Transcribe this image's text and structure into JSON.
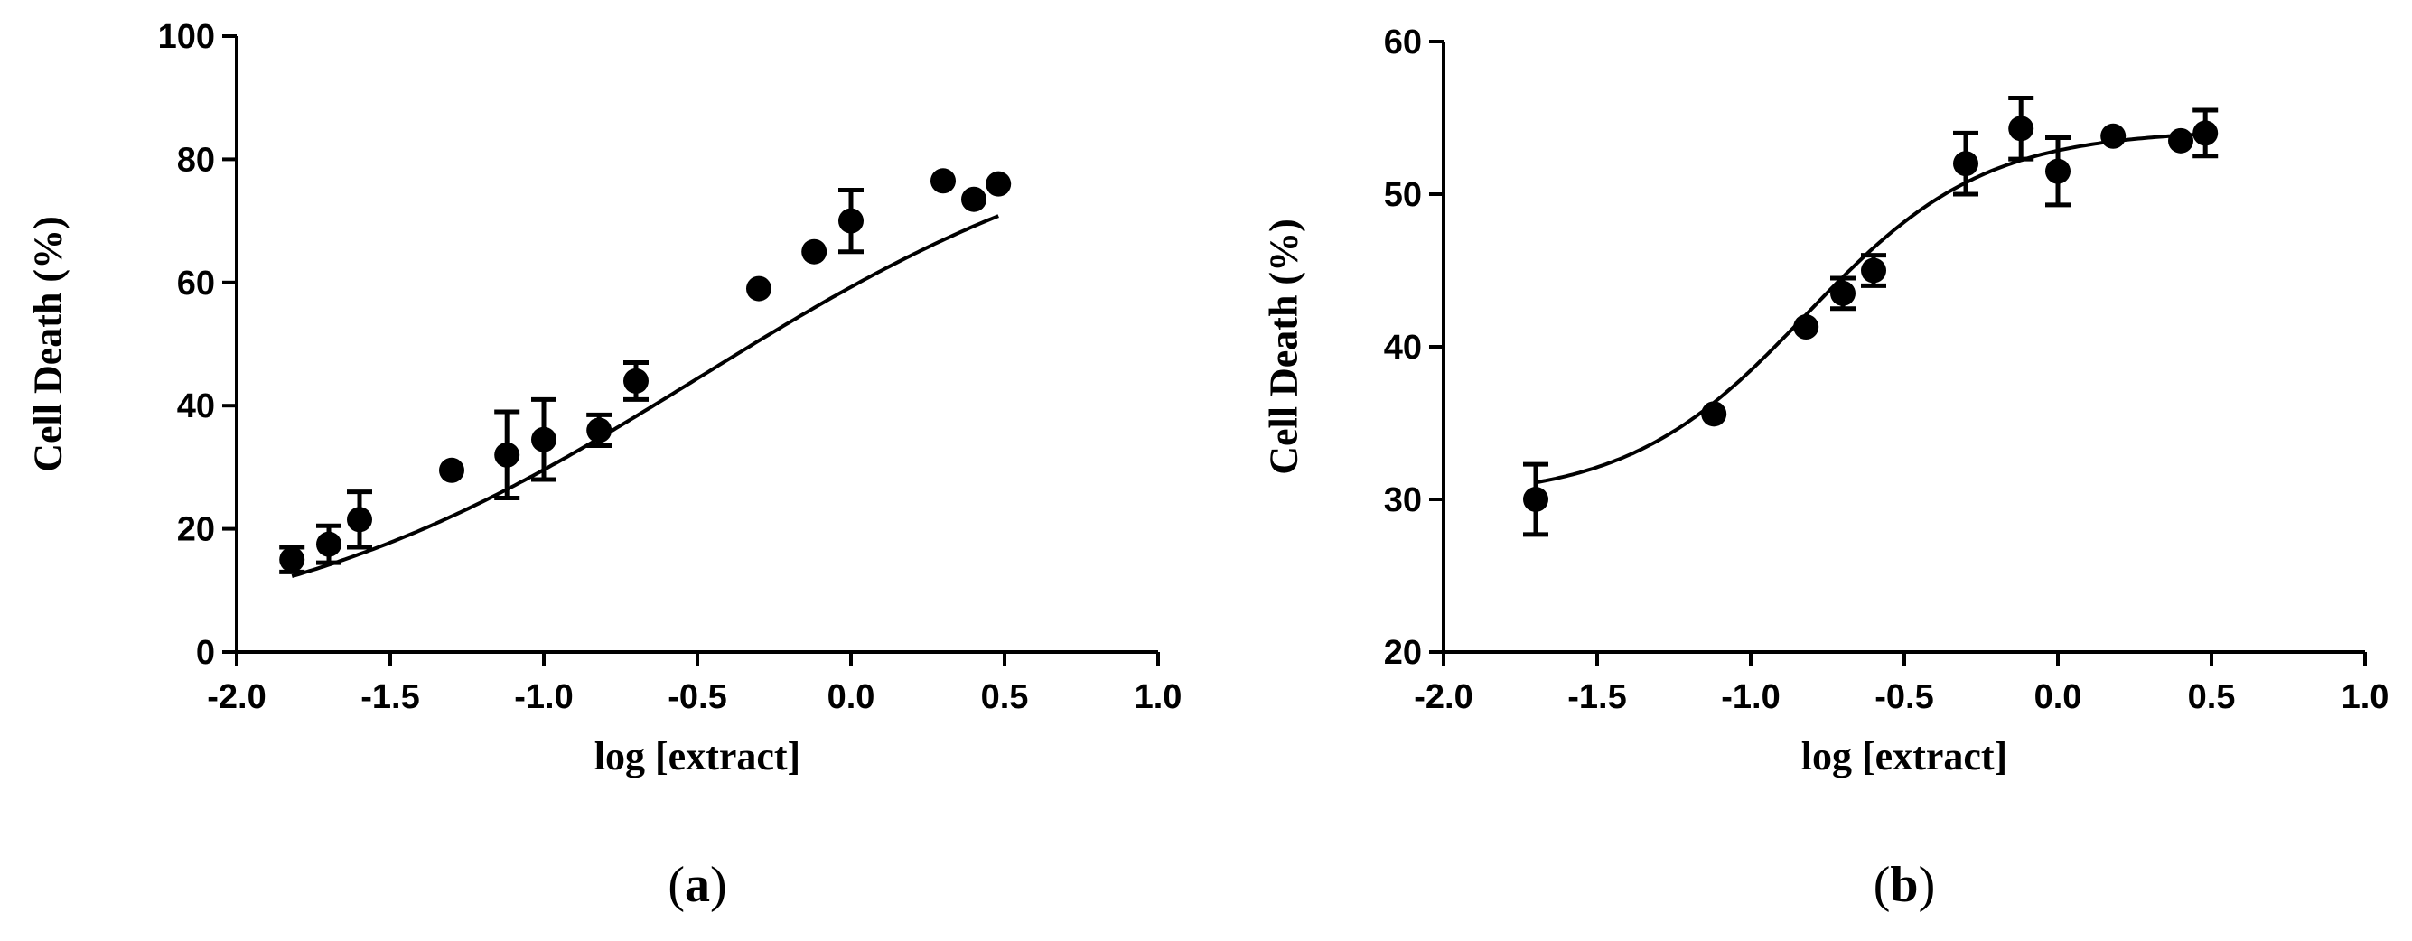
{
  "chart_data": [
    {
      "type": "scatter",
      "panel": "a",
      "panel_label": "a",
      "xlabel": "log [extract]",
      "ylabel": "Cell Death (%)",
      "xlim": [
        -2.0,
        1.0
      ],
      "ylim": [
        0,
        100
      ],
      "xticks": [
        -2.0,
        -1.5,
        -1.0,
        -0.5,
        0.0,
        0.5,
        1.0
      ],
      "xtick_labels": [
        "-2.0",
        "-1.5",
        "-1.0",
        "-0.5",
        "0.0",
        "0.5",
        "1.0"
      ],
      "yticks": [
        0,
        20,
        40,
        60,
        80,
        100
      ],
      "ytick_labels": [
        "0",
        "20",
        "40",
        "60",
        "80",
        "100"
      ],
      "points": [
        {
          "x": -1.82,
          "y": 15.0,
          "err": 2.0
        },
        {
          "x": -1.7,
          "y": 17.5,
          "err": 3.0
        },
        {
          "x": -1.6,
          "y": 21.5,
          "err": 4.5
        },
        {
          "x": -1.3,
          "y": 29.5,
          "err": 0
        },
        {
          "x": -1.12,
          "y": 32.0,
          "err": 7.0
        },
        {
          "x": -1.0,
          "y": 34.5,
          "err": 6.5
        },
        {
          "x": -0.82,
          "y": 36.0,
          "err": 2.5
        },
        {
          "x": -0.7,
          "y": 44.0,
          "err": 3.0
        },
        {
          "x": -0.3,
          "y": 59.0,
          "err": 0
        },
        {
          "x": -0.12,
          "y": 65.0,
          "err": 0
        },
        {
          "x": 0.0,
          "y": 70.0,
          "err": 5.0
        },
        {
          "x": 0.3,
          "y": 76.5,
          "err": 0
        },
        {
          "x": 0.4,
          "y": 73.5,
          "err": 0
        },
        {
          "x": 0.48,
          "y": 76.0,
          "err": 0
        }
      ],
      "fit": {
        "bottom": 0,
        "top": 89.3,
        "logEC50": -0.492,
        "hill": 0.6
      }
    },
    {
      "type": "scatter",
      "panel": "b",
      "panel_label": "b",
      "xlabel": "log [extract]",
      "ylabel": "Cell Death (%)",
      "xlim": [
        -2.0,
        1.0
      ],
      "ylim": [
        20,
        60
      ],
      "xticks": [
        -2.0,
        -1.5,
        -1.0,
        -0.5,
        0.0,
        0.5,
        1.0
      ],
      "xtick_labels": [
        "-2.0",
        "-1.5",
        "-1.0",
        "-0.5",
        "0.0",
        "0.5",
        "1.0"
      ],
      "yticks": [
        20,
        30,
        40,
        50,
        60
      ],
      "ytick_labels": [
        "20",
        "30",
        "40",
        "50",
        "60"
      ],
      "points": [
        {
          "x": -1.7,
          "y": 30.0,
          "err": 2.3
        },
        {
          "x": -1.12,
          "y": 35.6,
          "err": 0
        },
        {
          "x": -0.82,
          "y": 41.3,
          "err": 0
        },
        {
          "x": -0.7,
          "y": 43.5,
          "err": 1.0
        },
        {
          "x": -0.6,
          "y": 45.0,
          "err": 1.0
        },
        {
          "x": -0.3,
          "y": 52.0,
          "err": 2.0
        },
        {
          "x": -0.12,
          "y": 54.3,
          "err": 2.0
        },
        {
          "x": 0.0,
          "y": 51.5,
          "err": 2.2
        },
        {
          "x": 0.18,
          "y": 53.8,
          "err": 0
        },
        {
          "x": 0.4,
          "y": 53.5,
          "err": 0
        },
        {
          "x": 0.48,
          "y": 54.0,
          "err": 1.5
        }
      ],
      "fit": {
        "bottom": 30,
        "top": 54.2,
        "logEC50": -0.82,
        "hill": 1.5
      }
    }
  ]
}
